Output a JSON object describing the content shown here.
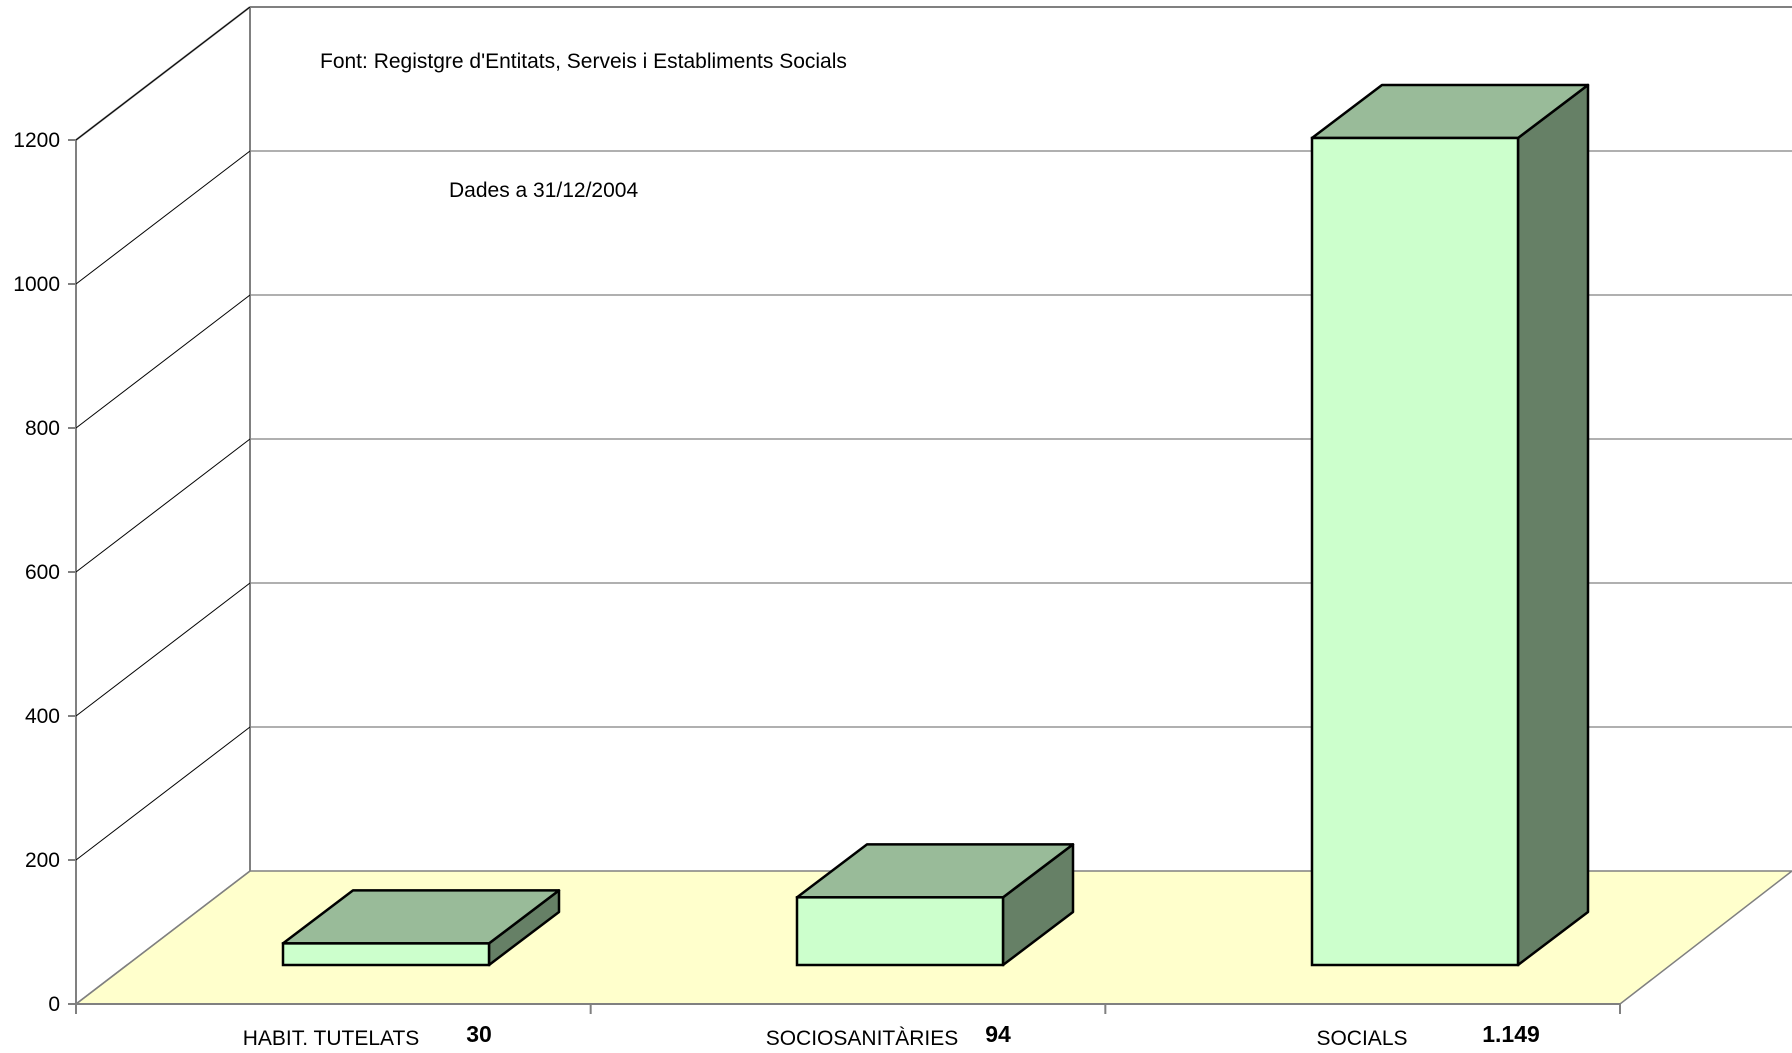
{
  "chart_data": {
    "type": "bar",
    "title": "",
    "xlabel": "",
    "ylabel": "",
    "categories": [
      "HABIT. TUTELATS",
      "SOCIOSANITÀRIES",
      "SOCIALS"
    ],
    "values": [
      30,
      94,
      1149
    ],
    "value_labels": [
      "30",
      "94",
      "1.149"
    ],
    "ylim": [
      0,
      1200
    ],
    "yticks": [
      0,
      200,
      400,
      600,
      800,
      1000,
      1200
    ],
    "ytick_labels": [
      "0",
      "200",
      "400",
      "600",
      "800",
      "1000",
      "1200"
    ],
    "grid": true,
    "style": "3d",
    "annotations": [
      "Font: Registgre d'Entitats, Serveis i Establiments Socials",
      "Dades a 31/12/2004"
    ],
    "colors": {
      "bar_front": "#ccffcc",
      "bar_top": "#99bb99",
      "bar_side": "#668066",
      "floor": "#ffffcc",
      "gridline": "#808080",
      "wall_edge": "#808080"
    }
  }
}
